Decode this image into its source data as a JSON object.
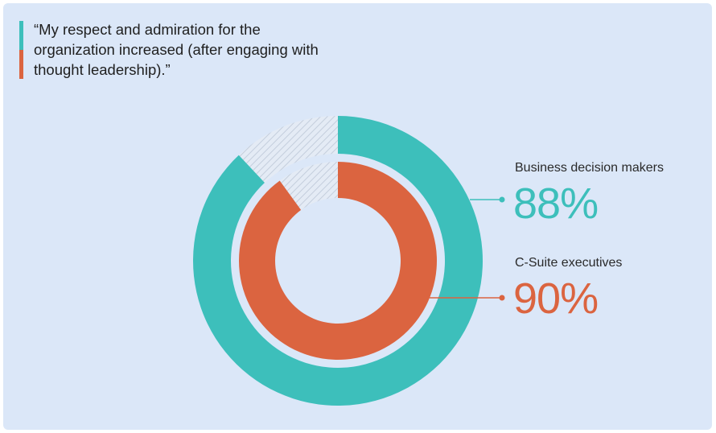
{
  "quote": "“My respect and admiration for the organization increased (after engaging with thought leadership).”",
  "colors": {
    "teal": "#3dbfbb",
    "orange": "#db6440",
    "hatch": "#c9d3e2",
    "background": "#dbe7f8"
  },
  "chart_data": {
    "type": "donut",
    "series": [
      {
        "name": "Business decision makers",
        "value": 88,
        "label": "88%",
        "ring": "outer",
        "color": "#3dbfbb"
      },
      {
        "name": "C-Suite executives",
        "value": 90,
        "label": "90%",
        "ring": "inner",
        "color": "#db6440"
      }
    ],
    "max": 100
  }
}
